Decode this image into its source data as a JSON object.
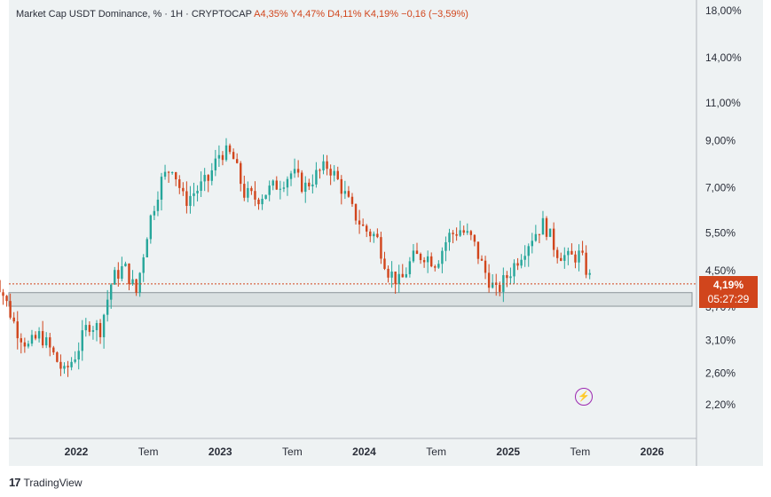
{
  "header": {
    "symbol": "Market Cap USDT Dominance, % · 1H · CRYPTOCAP",
    "open": "A4,35%",
    "high": "Y4,47%",
    "low": "D4,11%",
    "close": "K4,19%",
    "change": "−0,16 (−3,59%)"
  },
  "price_tag": {
    "value": "4,19%",
    "countdown": "05:27:29"
  },
  "branding": {
    "logo": "17",
    "name": "TradingView"
  },
  "colors": {
    "up": "#26a69a",
    "down": "#d1451c",
    "zone": "#d9e0e1",
    "background": "#eef2f3"
  },
  "chart_data": {
    "type": "candlestick",
    "scale": "log",
    "y_ticks": [
      {
        "value": 18.0,
        "label": "18,00%"
      },
      {
        "value": 14.0,
        "label": "14,00%"
      },
      {
        "value": 11.0,
        "label": "11,00%"
      },
      {
        "value": 9.0,
        "label": "9,00%"
      },
      {
        "value": 7.0,
        "label": "7,00%"
      },
      {
        "value": 5.5,
        "label": "5,50%"
      },
      {
        "value": 4.5,
        "label": "4,50%"
      },
      {
        "value": 3.7,
        "label": "3,70%"
      },
      {
        "value": 3.1,
        "label": "3,10%"
      },
      {
        "value": 2.6,
        "label": "2,60%"
      },
      {
        "value": 2.2,
        "label": "2,20%"
      }
    ],
    "x_ticks": [
      {
        "date": "2022-01",
        "label": "2022",
        "year": true
      },
      {
        "date": "2022-07",
        "label": "Tem",
        "year": false
      },
      {
        "date": "2023-01",
        "label": "2023",
        "year": true
      },
      {
        "date": "2023-07",
        "label": "Tem",
        "year": false
      },
      {
        "date": "2024-01",
        "label": "2024",
        "year": true
      },
      {
        "date": "2024-07",
        "label": "Tem",
        "year": false
      },
      {
        "date": "2025-01",
        "label": "2025",
        "year": true
      },
      {
        "date": "2025-07",
        "label": "Tem",
        "year": false
      },
      {
        "date": "2026-01",
        "label": "2026",
        "year": true
      }
    ],
    "support_zone": [
      3.72,
      4.0
    ],
    "last_price": 4.19,
    "x_range": [
      "2021-06",
      "2026-06"
    ],
    "close_series": [
      [
        "2021-06",
        4.6
      ],
      [
        "2021-07",
        3.9
      ],
      [
        "2021-08",
        3.3
      ],
      [
        "2021-09",
        3.0
      ],
      [
        "2021-10",
        3.2
      ],
      [
        "2021-11",
        2.9
      ],
      [
        "2021-12",
        2.6
      ],
      [
        "2022-01",
        2.9
      ],
      [
        "2022-02",
        3.4
      ],
      [
        "2022-03",
        3.3
      ],
      [
        "2022-04",
        4.3
      ],
      [
        "2022-05",
        4.6
      ],
      [
        "2022-06",
        4.0
      ],
      [
        "2022-07",
        5.7
      ],
      [
        "2022-08",
        7.2
      ],
      [
        "2022-09",
        7.9
      ],
      [
        "2022-10",
        6.5
      ],
      [
        "2022-11",
        6.9
      ],
      [
        "2022-12",
        7.3
      ],
      [
        "2023-01",
        8.5
      ],
      [
        "2023-02",
        8.3
      ],
      [
        "2023-03",
        6.8
      ],
      [
        "2023-04",
        6.6
      ],
      [
        "2023-05",
        6.9
      ],
      [
        "2023-06",
        7.2
      ],
      [
        "2023-07",
        7.6
      ],
      [
        "2023-08",
        7.0
      ],
      [
        "2023-09",
        7.5
      ],
      [
        "2023-10",
        7.9
      ],
      [
        "2023-11",
        7.1
      ],
      [
        "2023-12",
        6.2
      ],
      [
        "2024-01",
        5.6
      ],
      [
        "2024-02",
        5.4
      ],
      [
        "2024-03",
        4.5
      ],
      [
        "2024-04",
        4.2
      ],
      [
        "2024-05",
        4.8
      ],
      [
        "2024-06",
        4.9
      ],
      [
        "2024-07",
        4.7
      ],
      [
        "2024-08",
        5.4
      ],
      [
        "2024-09",
        5.6
      ],
      [
        "2024-10",
        5.3
      ],
      [
        "2024-11",
        4.5
      ],
      [
        "2024-12",
        4.0
      ],
      [
        "2025-01",
        4.4
      ],
      [
        "2025-02",
        4.9
      ],
      [
        "2025-03",
        5.4
      ],
      [
        "2025-04",
        5.8
      ],
      [
        "2025-05",
        5.0
      ],
      [
        "2025-06",
        4.8
      ],
      [
        "2025-07",
        4.9
      ],
      [
        "2025-08",
        4.19
      ]
    ]
  }
}
